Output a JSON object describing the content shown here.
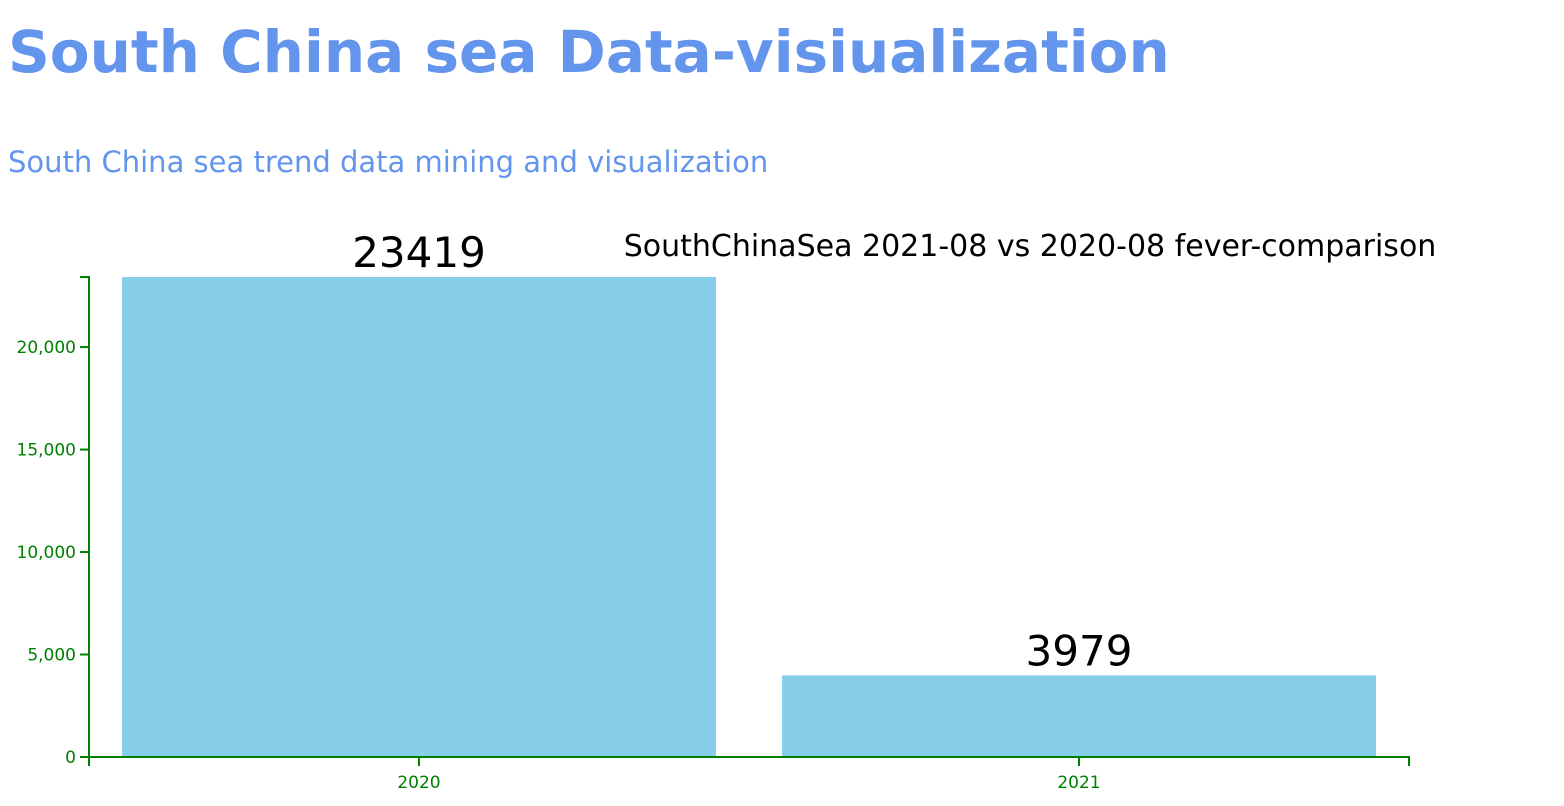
{
  "header": {
    "title": "South China sea Data-visiualization",
    "subtitle": "South China sea trend data mining and visualization"
  },
  "colors": {
    "heading": "#6495ed",
    "bar": "#87ceeb",
    "axis": "#008000",
    "label": "#000000"
  },
  "chart_data": {
    "type": "bar",
    "title": "SouthChinaSea 2021-08 vs 2020-08 fever-comparison",
    "categories": [
      "2020",
      "2021"
    ],
    "values": [
      23419,
      3979
    ],
    "data_labels": [
      "23419",
      "3979"
    ],
    "xlabel": "",
    "ylabel": "",
    "ylim": [
      0,
      23419
    ],
    "yticks": [
      0,
      5000,
      10000,
      15000,
      20000
    ],
    "ytick_labels": [
      "0",
      "5,000",
      "10,000",
      "15,000",
      "20,000"
    ],
    "grid": false,
    "legend": "none"
  }
}
